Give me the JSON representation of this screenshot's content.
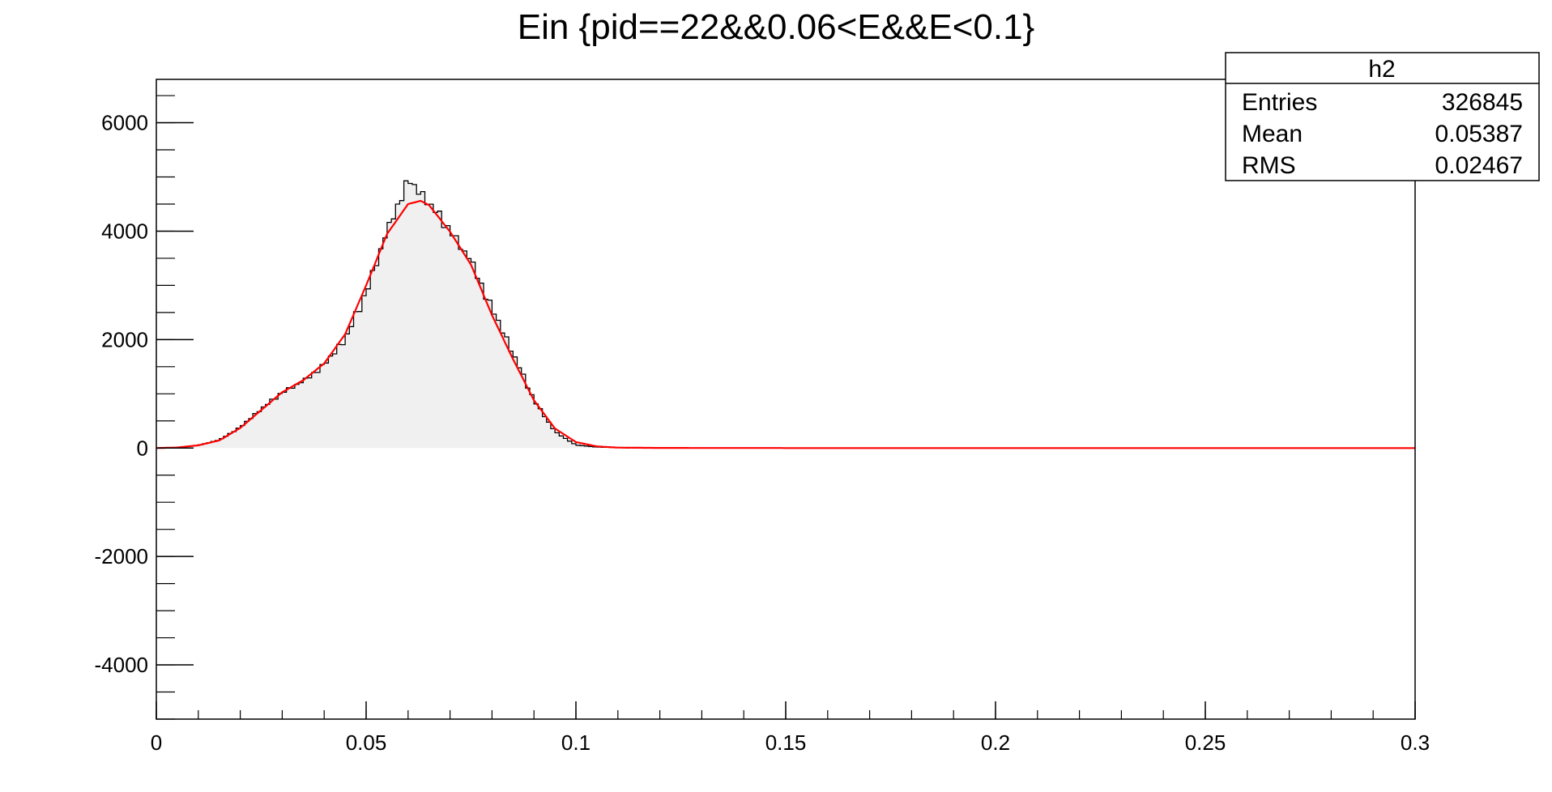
{
  "chart_data": {
    "type": "histogram",
    "title": "Ein {pid==22&&0.06<E&&E<0.1}",
    "xlabel": "",
    "ylabel": "",
    "xlim": [
      0,
      0.3
    ],
    "ylim": [
      -5000,
      6800
    ],
    "x_ticks": [
      0,
      0.05,
      0.1,
      0.15,
      0.2,
      0.25,
      0.3
    ],
    "x_tick_labels": [
      "0",
      "0.05",
      "0.1",
      "0.15",
      "0.2",
      "0.25",
      "0.3"
    ],
    "y_ticks": [
      -4000,
      -2000,
      0,
      2000,
      4000,
      6000
    ],
    "y_tick_labels": [
      "-4000",
      "-2000",
      "0",
      "2000",
      "4000",
      "6000"
    ],
    "grid": false,
    "histogram": {
      "name": "h2",
      "fill_color": "#f0f0f0",
      "line_color": "#000000",
      "x": [
        0.0,
        0.005,
        0.01,
        0.015,
        0.02,
        0.025,
        0.03,
        0.035,
        0.04,
        0.045,
        0.05,
        0.055,
        0.06,
        0.065,
        0.07,
        0.075,
        0.08,
        0.085,
        0.09,
        0.095,
        0.1,
        0.105,
        0.11,
        0.113
      ],
      "y": [
        0,
        10,
        50,
        150,
        380,
        720,
        1020,
        1230,
        1520,
        2000,
        2850,
        4000,
        4920,
        4520,
        4000,
        3450,
        2550,
        1750,
        880,
        300,
        55,
        18,
        8,
        0
      ]
    },
    "fit": {
      "color": "#ff0000",
      "x": [
        0.0,
        0.005,
        0.01,
        0.015,
        0.02,
        0.025,
        0.03,
        0.035,
        0.04,
        0.045,
        0.05,
        0.055,
        0.06,
        0.063,
        0.065,
        0.07,
        0.075,
        0.08,
        0.085,
        0.09,
        0.095,
        0.1,
        0.105,
        0.11,
        0.12,
        0.15,
        0.2,
        0.25,
        0.3
      ],
      "y": [
        0,
        10,
        50,
        140,
        370,
        700,
        1030,
        1250,
        1560,
        2100,
        3000,
        3950,
        4500,
        4560,
        4480,
        3990,
        3380,
        2450,
        1640,
        880,
        360,
        110,
        30,
        8,
        2,
        0,
        0,
        0,
        0
      ]
    },
    "stats_box": {
      "name": "h2",
      "rows": [
        {
          "label": "Entries",
          "value": "326845"
        },
        {
          "label": "Mean",
          "value": "0.05387"
        },
        {
          "label": "RMS",
          "value": "0.02467"
        }
      ]
    },
    "legend": "top-right"
  }
}
